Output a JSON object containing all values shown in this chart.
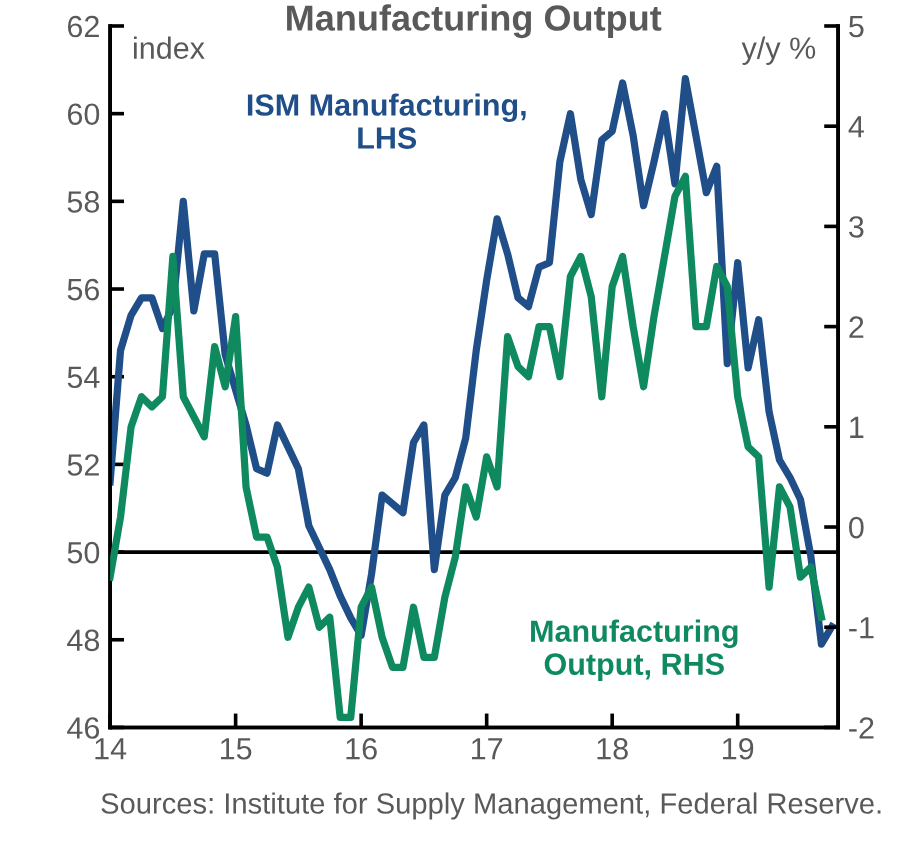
{
  "chart_data": {
    "type": "line",
    "title": "Manufacturing Output",
    "ylabel": "index",
    "y2label": "y/y %",
    "x": [
      14,
      14.083,
      14.167,
      14.25,
      14.333,
      14.417,
      14.5,
      14.583,
      14.667,
      14.75,
      14.833,
      14.917,
      15,
      15.083,
      15.167,
      15.25,
      15.333,
      15.417,
      15.5,
      15.583,
      15.667,
      15.75,
      15.833,
      15.917,
      16,
      16.083,
      16.167,
      16.25,
      16.333,
      16.417,
      16.5,
      16.583,
      16.667,
      16.75,
      16.833,
      16.917,
      17,
      17.083,
      17.167,
      17.25,
      17.333,
      17.417,
      17.5,
      17.583,
      17.667,
      17.75,
      17.833,
      17.917,
      18,
      18.083,
      18.167,
      18.25,
      18.333,
      18.417,
      18.5,
      18.583,
      18.667,
      18.75,
      18.833,
      18.917,
      19,
      19.083,
      19.167,
      19.25,
      19.333,
      19.417,
      19.5,
      19.583,
      19.667,
      19.75
    ],
    "series": [
      {
        "name": "ISM Manufacturing,\nLHS",
        "color": "#1f4e89",
        "values": [
          51.6,
          54.6,
          55.4,
          55.8,
          55.8,
          55.1,
          55.6,
          58.0,
          55.5,
          56.8,
          56.8,
          54.5,
          53.7,
          52.9,
          51.9,
          51.8,
          52.9,
          52.4,
          51.9,
          50.6,
          50.1,
          49.6,
          49.0,
          48.5,
          48.1,
          49.5,
          51.3,
          51.1,
          50.9,
          52.5,
          52.9,
          49.6,
          51.3,
          51.7,
          52.6,
          54.6,
          56.2,
          57.6,
          56.8,
          55.8,
          55.6,
          56.5,
          56.6,
          58.9,
          60.0,
          58.5,
          57.7,
          59.4,
          59.6,
          60.7,
          59.5,
          57.9,
          58.9,
          60.0,
          58.4,
          60.8,
          59.5,
          58.2,
          58.8,
          54.3,
          56.6,
          54.2,
          55.3,
          53.2,
          52.1,
          51.7,
          51.2,
          49.9,
          47.9,
          48.3
        ]
      },
      {
        "name": "Manufacturing\nOutput, RHS",
        "color": "#0f8a5f",
        "axis": "y2",
        "values": [
          -0.5,
          0.1,
          1.0,
          1.3,
          1.2,
          1.3,
          2.7,
          1.3,
          1.1,
          0.9,
          1.8,
          1.4,
          2.1,
          0.4,
          -0.1,
          -0.1,
          -0.4,
          -1.1,
          -0.8,
          -0.6,
          -1.0,
          -0.9,
          -1.9,
          -1.9,
          -0.8,
          -0.6,
          -1.1,
          -1.4,
          -1.4,
          -0.8,
          -1.3,
          -1.3,
          -0.7,
          -0.3,
          0.4,
          0.1,
          0.7,
          0.4,
          1.9,
          1.6,
          1.5,
          2.0,
          2.0,
          1.5,
          2.5,
          2.7,
          2.3,
          1.3,
          2.4,
          2.7,
          2.0,
          1.4,
          2.1,
          2.7,
          3.3,
          3.5,
          2.0,
          2.0,
          2.6,
          2.4,
          1.3,
          0.8,
          0.7,
          -0.6,
          0.4,
          0.2,
          -0.5,
          -0.4,
          -0.9,
          null
        ]
      }
    ],
    "xlim": [
      14,
      19.8
    ],
    "xticks": [
      14,
      15,
      16,
      17,
      18,
      19
    ],
    "ylim": [
      46,
      62
    ],
    "yticks": [
      46,
      48,
      50,
      52,
      54,
      56,
      58,
      60,
      62
    ],
    "y2lim": [
      -2,
      5
    ],
    "y2ticks": [
      -2,
      -1,
      0,
      1,
      2,
      3,
      4,
      5
    ],
    "ref_lines": [
      {
        "axis": "y",
        "value": 50,
        "color": "#000000"
      }
    ],
    "annotations": [
      "Sources: Institute for Supply Management, Federal Reserve."
    ],
    "grid": false,
    "legend": false,
    "line_style": "solid",
    "marker": "none"
  }
}
